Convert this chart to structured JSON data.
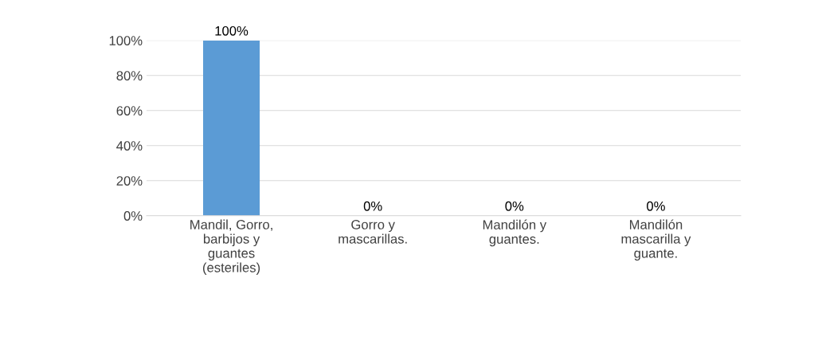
{
  "chart_data": {
    "type": "bar",
    "categories": [
      "Mandil, Gorro, barbijos y guantes (esteriles)",
      "Gorro y mascarillas.",
      "Mandilón y guantes.",
      "Mandilón mascarilla y guante."
    ],
    "values": [
      100,
      0,
      0,
      0
    ],
    "value_labels": [
      "100%",
      "0%",
      "0%",
      "0%"
    ],
    "color": "#5b9bd5",
    "ylim": [
      0,
      100
    ],
    "yticks": [
      {
        "value": 0,
        "label": "0%"
      },
      {
        "value": 20,
        "label": "20%"
      },
      {
        "value": 40,
        "label": "40%"
      },
      {
        "value": 60,
        "label": "60%"
      },
      {
        "value": 80,
        "label": "80%"
      },
      {
        "value": 100,
        "label": "100%"
      }
    ],
    "grid": "y"
  }
}
